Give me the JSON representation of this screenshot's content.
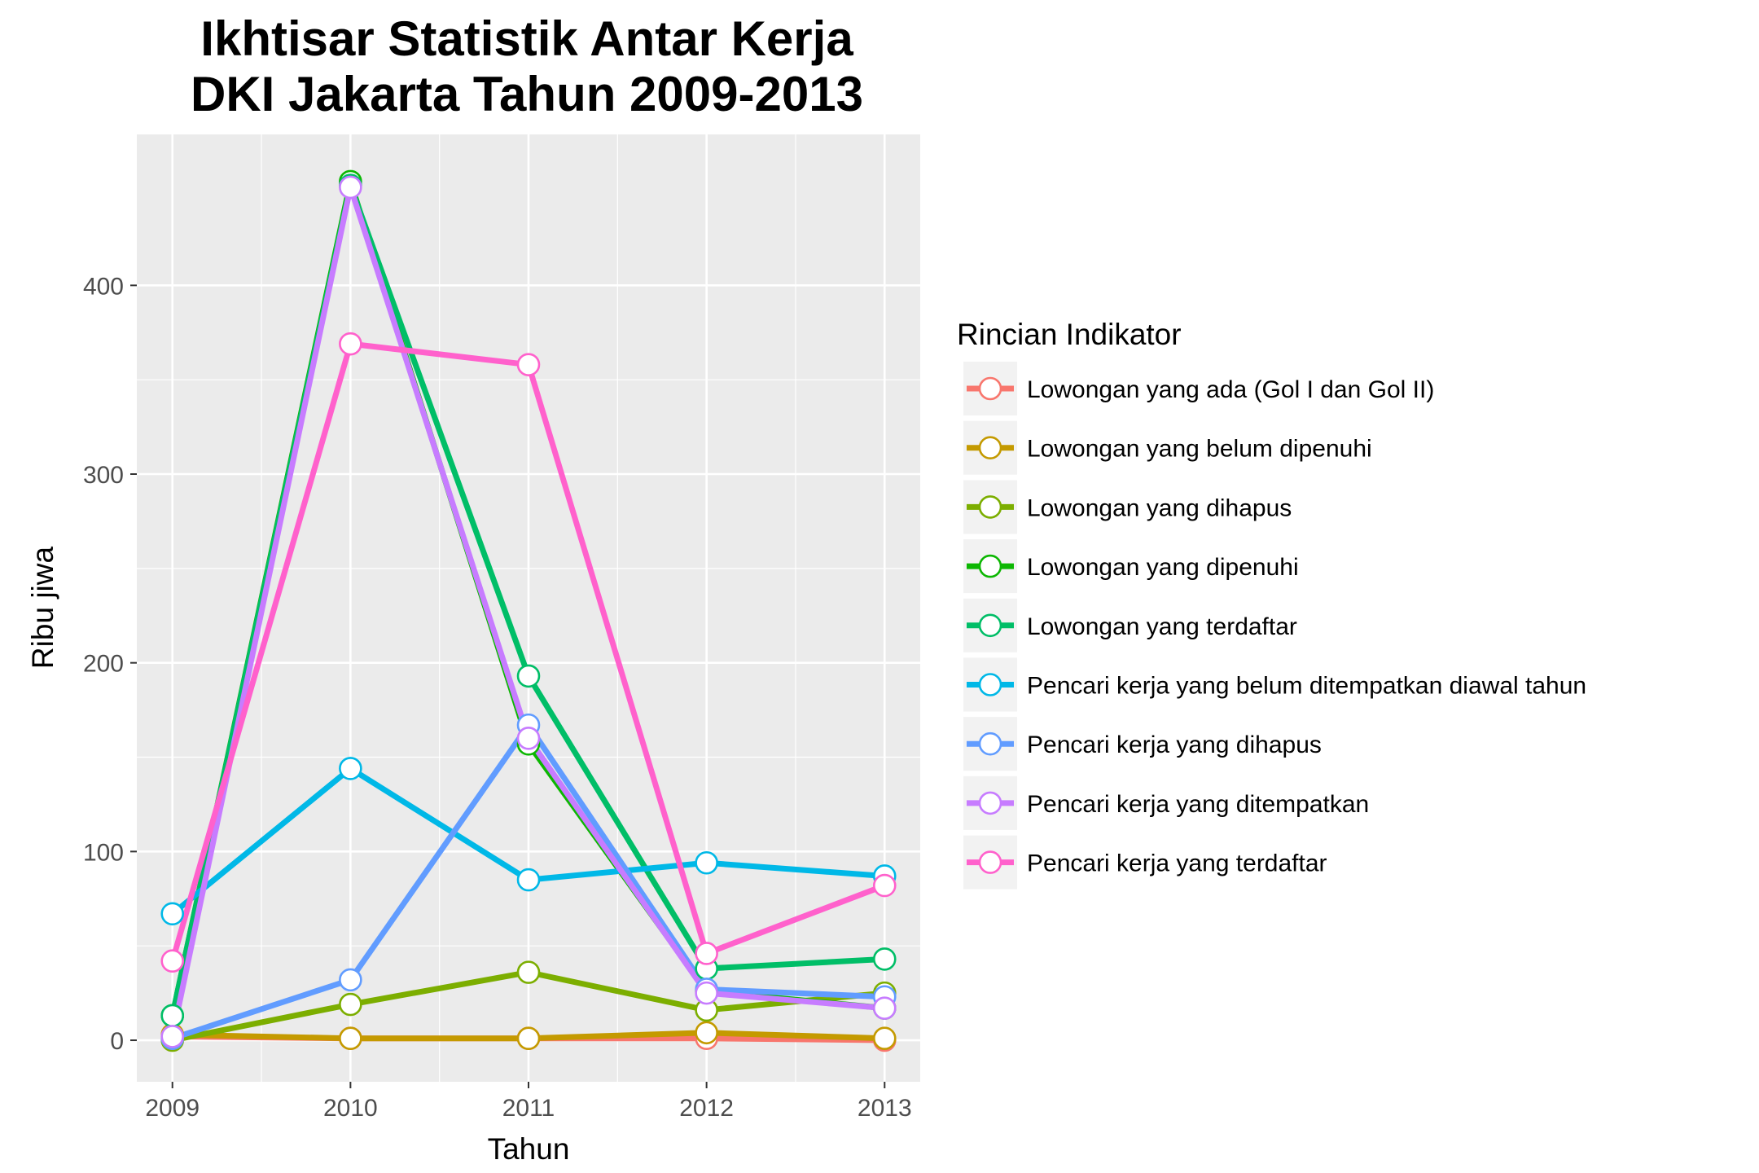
{
  "chart_data": {
    "type": "line",
    "title": [
      "Ikhtisar Statistik Antar Kerja",
      "DKI Jakarta Tahun 2009-2013"
    ],
    "xlabel": "Tahun",
    "ylabel": "Ribu jiwa",
    "x": [
      2009,
      2010,
      2011,
      2012,
      2013
    ],
    "x_tick_labels": [
      "2009",
      "2010",
      "2011",
      "2012",
      "2013"
    ],
    "xlim": [
      2008.8,
      2013.2
    ],
    "ylim": [
      -22,
      480
    ],
    "y_ticks": [
      0,
      100,
      200,
      300,
      400
    ],
    "y_tick_labels": [
      "0",
      "100",
      "200",
      "300",
      "400"
    ],
    "grid": true,
    "legend": {
      "title": "Rincian Indikator",
      "position": "right"
    },
    "series": [
      {
        "name": "Lowongan yang ada (Gol I dan Gol II)",
        "color": "#F8766D",
        "values": [
          2,
          1,
          1,
          1,
          0
        ]
      },
      {
        "name": "Lowongan yang belum dipenuhi",
        "color": "#C49A00",
        "values": [
          3,
          1,
          1,
          4,
          1
        ]
      },
      {
        "name": "Lowongan yang dihapus",
        "color": "#7CAE00",
        "values": [
          0,
          19,
          36,
          16,
          25
        ]
      },
      {
        "name": "Lowongan yang dipenuhi",
        "color": "#0CB702",
        "values": [
          13,
          455,
          157,
          26,
          17
        ]
      },
      {
        "name": "Lowongan yang terdaftar",
        "color": "#00BE67",
        "values": [
          13,
          453,
          193,
          38,
          43
        ]
      },
      {
        "name": "Pencari kerja yang belum ditempatkan diawal tahun",
        "color": "#00B8E7",
        "values": [
          67,
          144,
          85,
          94,
          87
        ]
      },
      {
        "name": "Pencari kerja yang dihapus",
        "color": "#619CFF",
        "values": [
          1,
          32,
          167,
          27,
          23
        ]
      },
      {
        "name": "Pencari kerja yang ditempatkan",
        "color": "#C77CFF",
        "values": [
          2,
          452,
          160,
          25,
          17
        ]
      },
      {
        "name": "Pencari kerja yang terdaftar",
        "color": "#FF61CC",
        "values": [
          42,
          369,
          358,
          46,
          82
        ]
      }
    ]
  }
}
